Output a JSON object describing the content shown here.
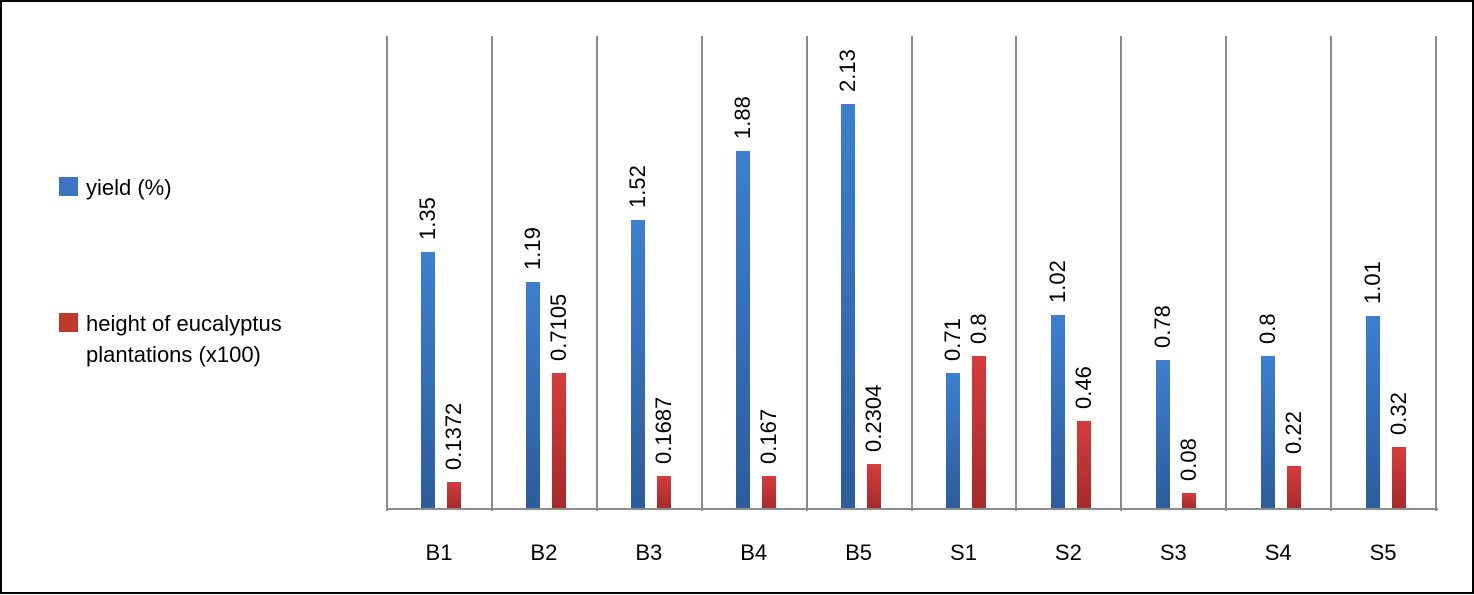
{
  "legend": {
    "items": [
      {
        "label": "yield (%)",
        "color": "#3a75c4"
      },
      {
        "label_line1": "height of eucalyptus",
        "label_line2": "plantations (x100)",
        "color": "#c0392b"
      }
    ]
  },
  "chart_data": {
    "type": "bar",
    "title": "",
    "xlabel": "",
    "ylabel": "",
    "categories": [
      "B1",
      "B2",
      "B3",
      "B4",
      "B5",
      "S1",
      "S2",
      "S3",
      "S4",
      "S5"
    ],
    "series": [
      {
        "name": "yield (%)",
        "color": "#3a75c4",
        "values": [
          1.35,
          1.19,
          1.52,
          1.88,
          2.13,
          0.71,
          1.02,
          0.78,
          0.8,
          1.01
        ],
        "labels": [
          "1.35",
          "1.19",
          "1.52",
          "1.88",
          "2.13",
          "0.71",
          "1.02",
          "0.78",
          "0.8",
          "1.01"
        ]
      },
      {
        "name": "height of eucalyptus plantations (x100)",
        "color": "#c0392b",
        "values": [
          0.1372,
          0.7105,
          0.1687,
          0.167,
          0.2304,
          0.8,
          0.46,
          0.08,
          0.22,
          0.32
        ],
        "labels": [
          "0.1372",
          "0.7105",
          "0.1687",
          "0.167",
          "0.2304",
          "0.8",
          "0.46",
          "0.08",
          "0.22",
          "0.32"
        ]
      }
    ],
    "ylim": [
      0,
      2.5
    ],
    "grid": "vertical category separators",
    "legend_position": "left",
    "data_labels": "rotated vertical above bars"
  }
}
